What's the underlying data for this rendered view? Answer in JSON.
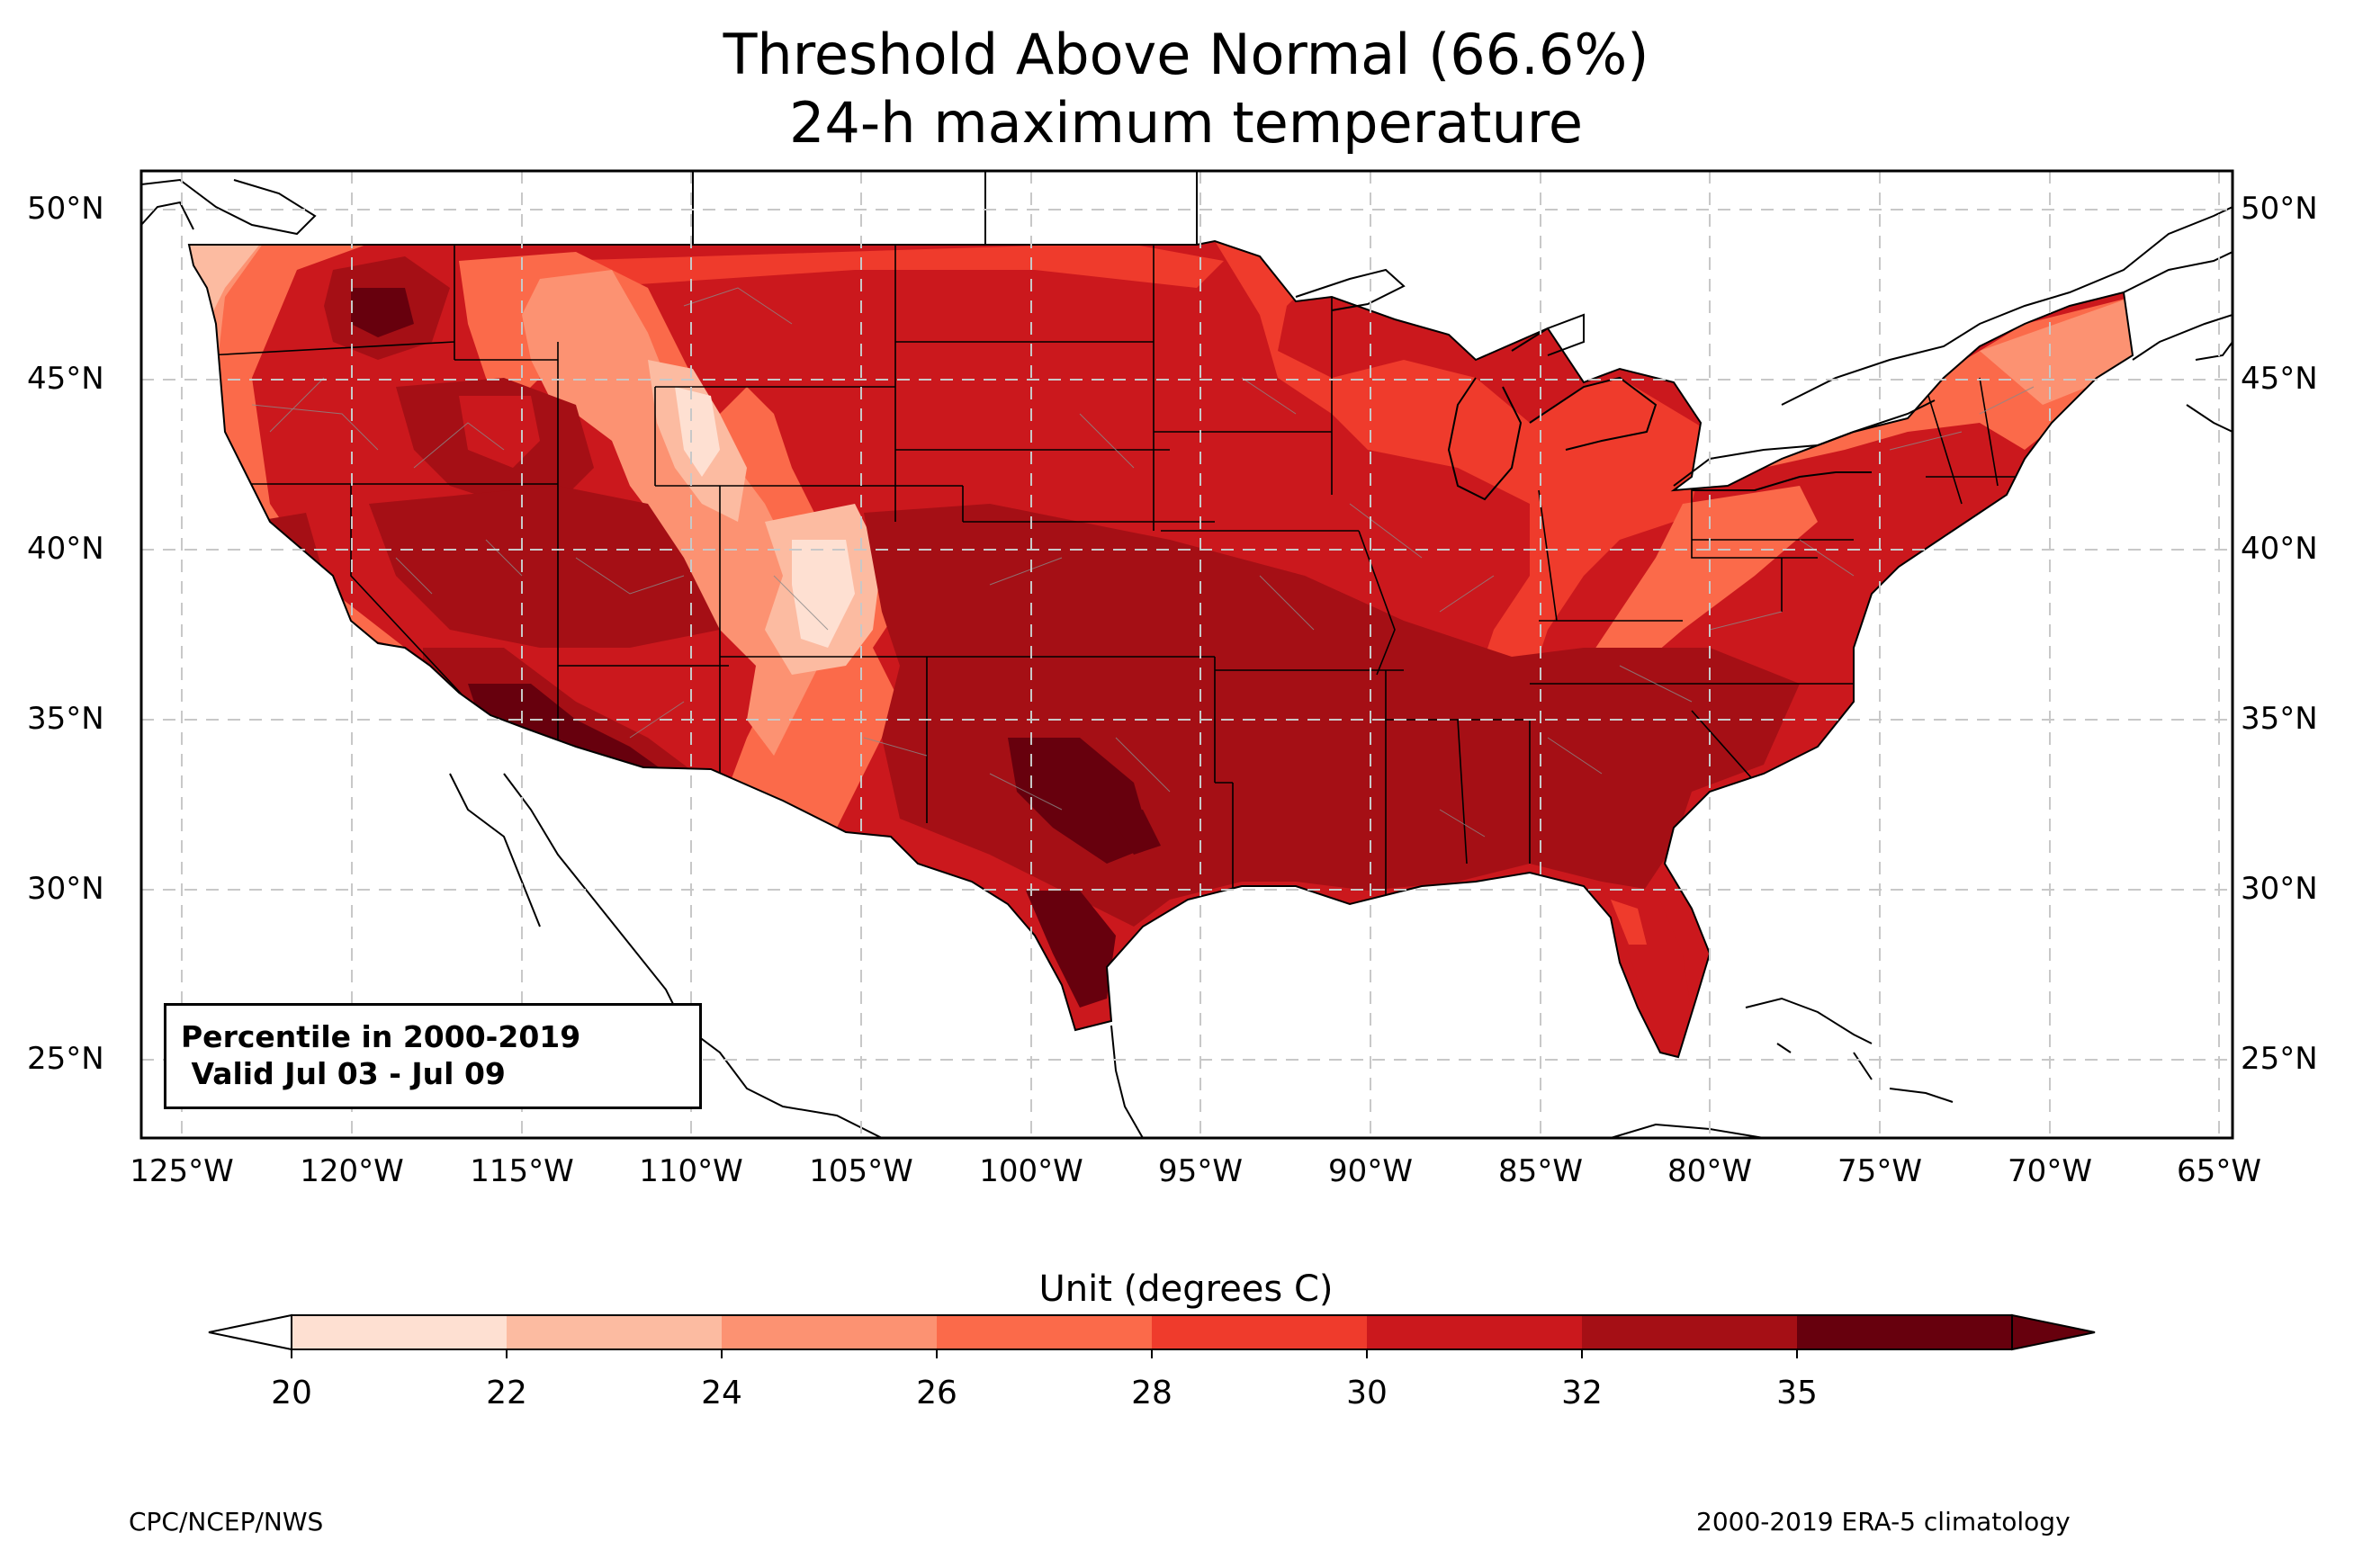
{
  "title": {
    "line1": "Threshold Above Normal (66.6%)",
    "line2": "24-h maximum temperature"
  },
  "map": {
    "lat_labels": [
      "50°N",
      "45°N",
      "40°N",
      "35°N",
      "30°N",
      "25°N"
    ],
    "lat_values": [
      50,
      45,
      40,
      35,
      30,
      25
    ],
    "lon_labels": [
      "125°W",
      "120°W",
      "115°W",
      "110°W",
      "105°W",
      "100°W",
      "95°W",
      "90°W",
      "85°W",
      "80°W",
      "75°W",
      "70°W",
      "65°W"
    ],
    "lon_values": [
      -125,
      -120,
      -115,
      -110,
      -105,
      -100,
      -95,
      -90,
      -85,
      -80,
      -75,
      -70,
      -65
    ],
    "extent": {
      "lon": [
        -126.2,
        -64.9
      ],
      "lat": [
        22.8,
        51.2
      ]
    },
    "gridlines": true,
    "field": "24-h maximum temperature threshold (degrees C), contoured",
    "infobox": {
      "line1": "Percentile in 2000-2019",
      "line2": " Valid Jul 03 - Jul 09"
    }
  },
  "colorbar": {
    "title": "Unit (degrees C)",
    "ticks": [
      "20",
      "22",
      "24",
      "26",
      "28",
      "30",
      "32",
      "35"
    ],
    "levels": [
      20,
      22,
      24,
      26,
      28,
      30,
      32,
      35
    ],
    "colors": [
      "#fee0d2",
      "#fcbba1",
      "#fc9272",
      "#fb6a4a",
      "#ef3b2c",
      "#cb181d",
      "#a50f15",
      "#67000d"
    ],
    "under_color": "#ffffff",
    "over_color": "#67000d"
  },
  "footer": {
    "left": "CPC/NCEP/NWS",
    "right": "2000-2019 ERA-5 climatology"
  }
}
